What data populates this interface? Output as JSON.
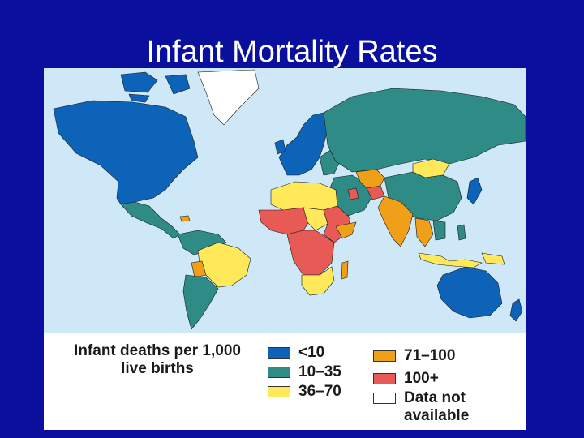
{
  "slide": {
    "title": "Infant Mortality Rates"
  },
  "legend": {
    "title_line1": "Infant deaths per 1,000",
    "title_line2": "live births",
    "items": [
      {
        "label": "<10",
        "color": "#0d63b8"
      },
      {
        "label": "10–35",
        "color": "#2e8b86"
      },
      {
        "label": "36–70",
        "color": "#ffe85a"
      },
      {
        "label": "71–100",
        "color": "#f0a018"
      },
      {
        "label": "100+",
        "color": "#e85a56"
      },
      {
        "label": "Data not available",
        "color": "#ffffff"
      }
    ]
  },
  "colors": {
    "background": "#0a0f9e",
    "ocean": "#cfe8f7",
    "low": "#0d63b8",
    "mid": "#2e8b86",
    "high": "#ffe85a",
    "veryhigh": "#f0a018",
    "extreme": "#e85a56",
    "na": "#ffffff"
  }
}
